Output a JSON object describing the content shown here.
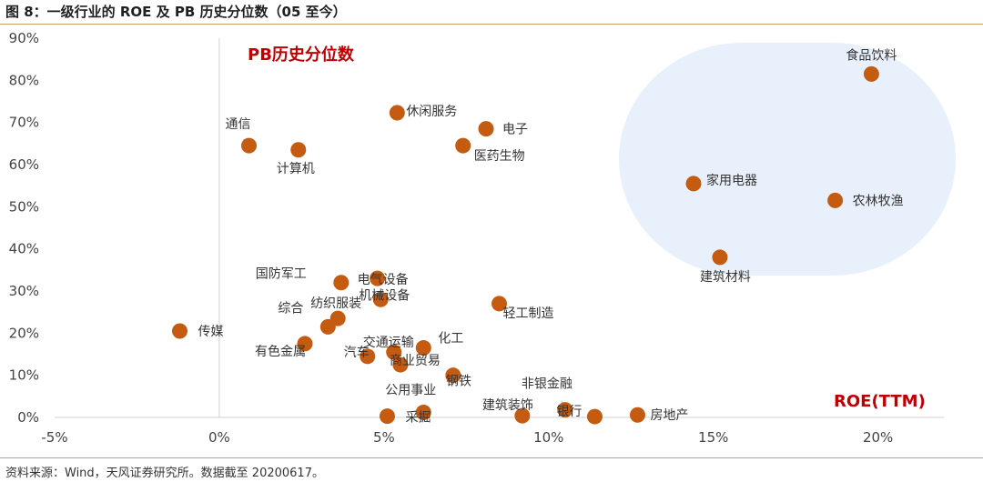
{
  "header": {
    "title": "图 8：一级行业的 ROE 及 PB 历史分位数（05 至今）"
  },
  "footer": {
    "source": "资料来源：Wind，天风证券研究所。数据截至 20200617。"
  },
  "chart_data": {
    "type": "scatter",
    "title": "图 8：一级行业的 ROE 及 PB 历史分位数（05 至今）",
    "xlabel": "ROE(TTM)",
    "ylabel": "PB历史分位数",
    "xlim": [
      -5,
      22
    ],
    "ylim": [
      0,
      90
    ],
    "x_ticks": [
      -5,
      0,
      5,
      10,
      15,
      20
    ],
    "y_ticks": [
      0,
      10,
      20,
      30,
      40,
      50,
      60,
      70,
      80,
      90
    ],
    "x_tick_labels": [
      "-5%",
      "0%",
      "5%",
      "10%",
      "15%",
      "20%"
    ],
    "y_tick_labels": [
      "0%",
      "10%",
      "20%",
      "30%",
      "40%",
      "50%",
      "60%",
      "70%",
      "80%",
      "90%"
    ],
    "grid": false,
    "marker_color": "#c55a11",
    "highlight_color": "#e8f1fb",
    "points": [
      {
        "name": "食品饮料",
        "x": 19.8,
        "y": 81.5
      },
      {
        "name": "家用电器",
        "x": 14.4,
        "y": 55.5
      },
      {
        "name": "农林牧渔",
        "x": 18.7,
        "y": 51.5
      },
      {
        "name": "建筑材料",
        "x": 15.2,
        "y": 38.0
      },
      {
        "name": "休闲服务",
        "x": 5.4,
        "y": 72.3
      },
      {
        "name": "电子",
        "x": 8.1,
        "y": 68.5
      },
      {
        "name": "医药生物",
        "x": 7.4,
        "y": 64.5
      },
      {
        "name": "通信",
        "x": 0.9,
        "y": 64.5
      },
      {
        "name": "计算机",
        "x": 2.4,
        "y": 63.5
      },
      {
        "name": "国防军工",
        "x": 3.7,
        "y": 32.0
      },
      {
        "name": "电气设备",
        "x": 4.8,
        "y": 33.0
      },
      {
        "name": "机械设备",
        "x": 4.9,
        "y": 28.0
      },
      {
        "name": "轻工制造",
        "x": 8.5,
        "y": 27.0
      },
      {
        "name": "纺织服装",
        "x": 3.6,
        "y": 23.5
      },
      {
        "name": "综合",
        "x": 3.3,
        "y": 21.5
      },
      {
        "name": "传媒",
        "x": -1.2,
        "y": 20.5
      },
      {
        "name": "有色金属",
        "x": 2.6,
        "y": 17.5
      },
      {
        "name": "汽车",
        "x": 4.5,
        "y": 14.5
      },
      {
        "name": "交通运输",
        "x": 5.3,
        "y": 15.5
      },
      {
        "name": "化工",
        "x": 6.2,
        "y": 16.5
      },
      {
        "name": "商业贸易",
        "x": 5.5,
        "y": 12.5
      },
      {
        "name": "钢铁",
        "x": 7.1,
        "y": 10.0
      },
      {
        "name": "公用事业",
        "x": 6.2,
        "y": 1.2
      },
      {
        "name": "采掘",
        "x": 5.1,
        "y": 0.3
      },
      {
        "name": "建筑装饰",
        "x": 9.2,
        "y": 0.4
      },
      {
        "name": "非银金融",
        "x": 10.5,
        "y": 1.8
      },
      {
        "name": "银行",
        "x": 11.4,
        "y": 0.2
      },
      {
        "name": "房地产",
        "x": 12.7,
        "y": 0.6
      }
    ]
  }
}
